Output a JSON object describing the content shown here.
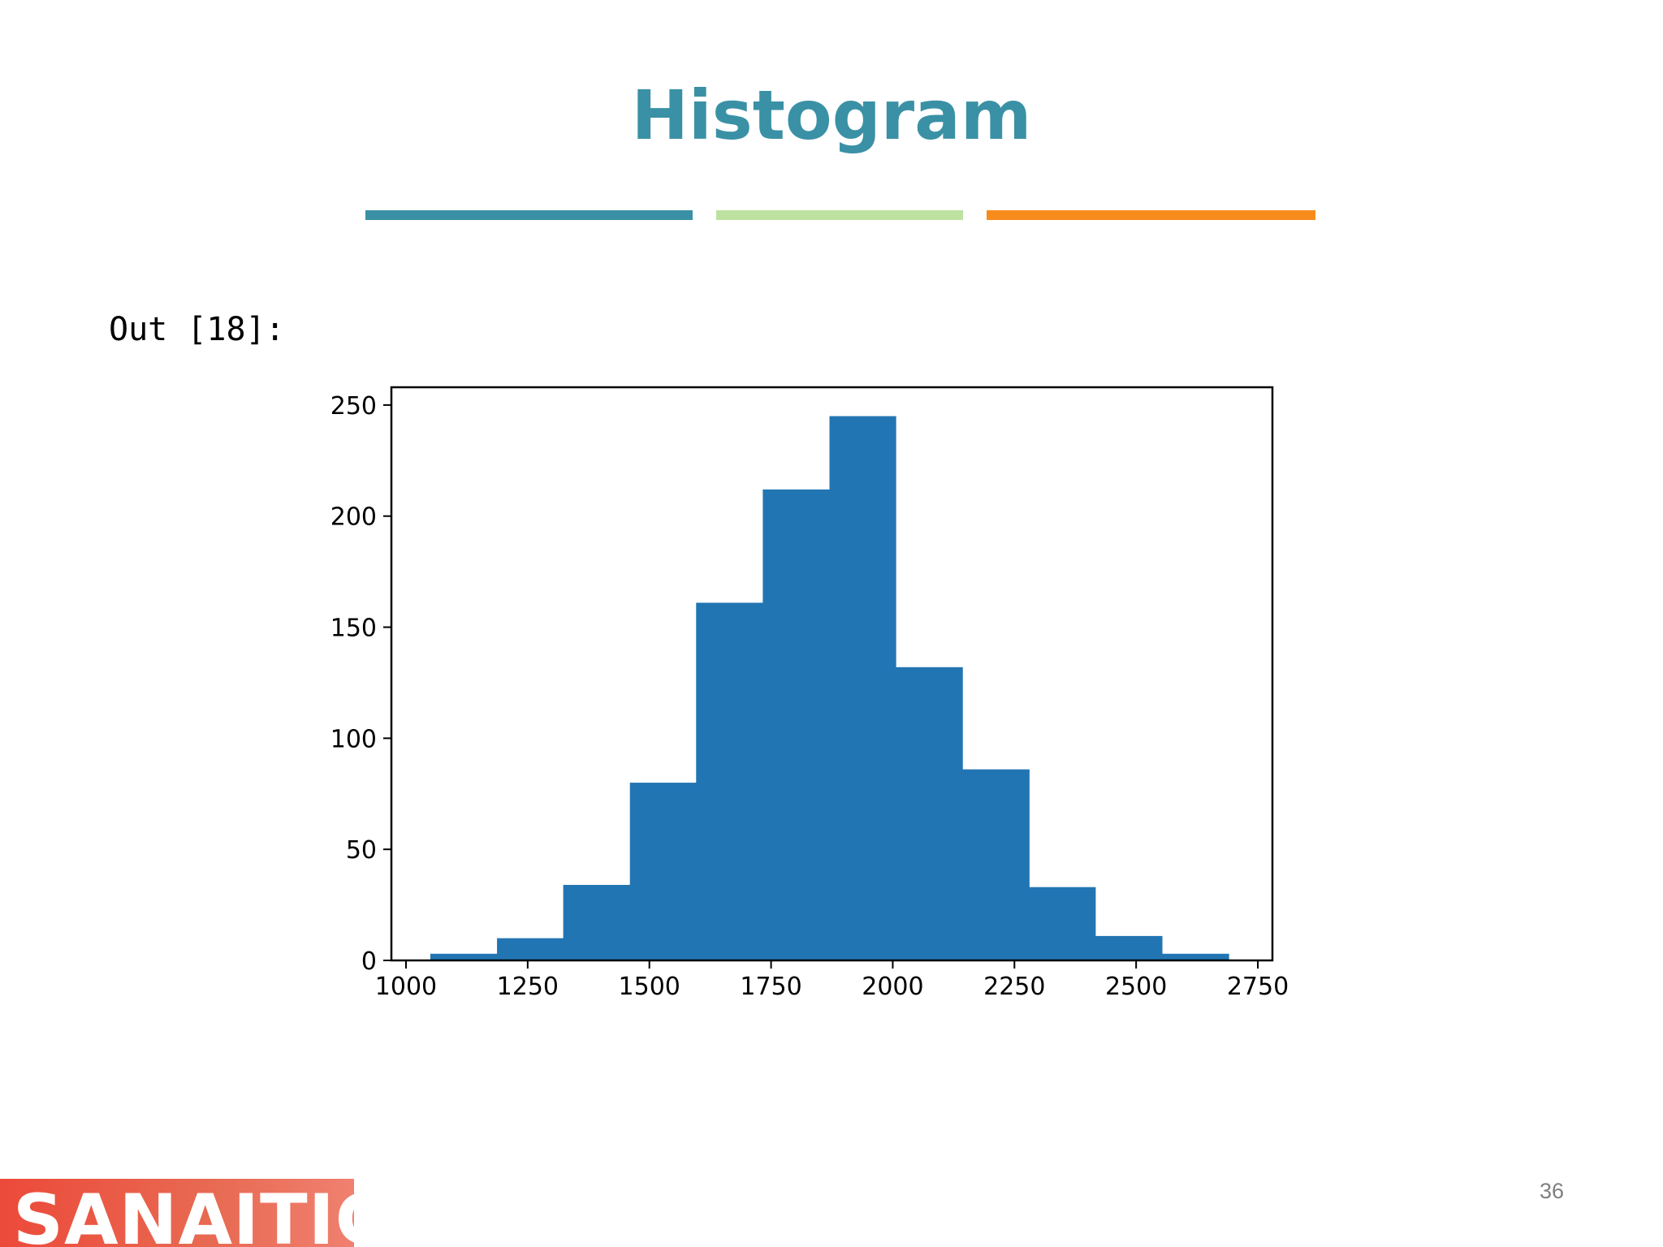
{
  "slide": {
    "title": "Histogram",
    "accent_colors": [
      "#3a91a5",
      "#bde2a0",
      "#f78c1d"
    ],
    "output_label": "Out [18]:",
    "logo_text": "SANAITICS",
    "page_number": "36"
  },
  "chart_data": {
    "type": "bar",
    "title": "",
    "xlabel": "",
    "ylabel": "",
    "bar_color": "#2275b3",
    "xlim": [
      970,
      2780
    ],
    "ylim": [
      0,
      258
    ],
    "x_ticks": [
      1000,
      1250,
      1500,
      1750,
      2000,
      2250,
      2500,
      2750
    ],
    "y_ticks": [
      0,
      50,
      100,
      150,
      200,
      250
    ],
    "bins": [
      {
        "start": 1050,
        "end": 1187,
        "count": 3
      },
      {
        "start": 1187,
        "end": 1323,
        "count": 10
      },
      {
        "start": 1323,
        "end": 1460,
        "count": 34
      },
      {
        "start": 1460,
        "end": 1596,
        "count": 80
      },
      {
        "start": 1596,
        "end": 1733,
        "count": 161
      },
      {
        "start": 1733,
        "end": 1870,
        "count": 212
      },
      {
        "start": 1870,
        "end": 2006,
        "count": 245
      },
      {
        "start": 2006,
        "end": 2143,
        "count": 132
      },
      {
        "start": 2143,
        "end": 2280,
        "count": 86
      },
      {
        "start": 2280,
        "end": 2416,
        "count": 33
      },
      {
        "start": 2416,
        "end": 2553,
        "count": 11
      },
      {
        "start": 2553,
        "end": 2690,
        "count": 3
      }
    ],
    "grid": false,
    "legend": "none"
  }
}
